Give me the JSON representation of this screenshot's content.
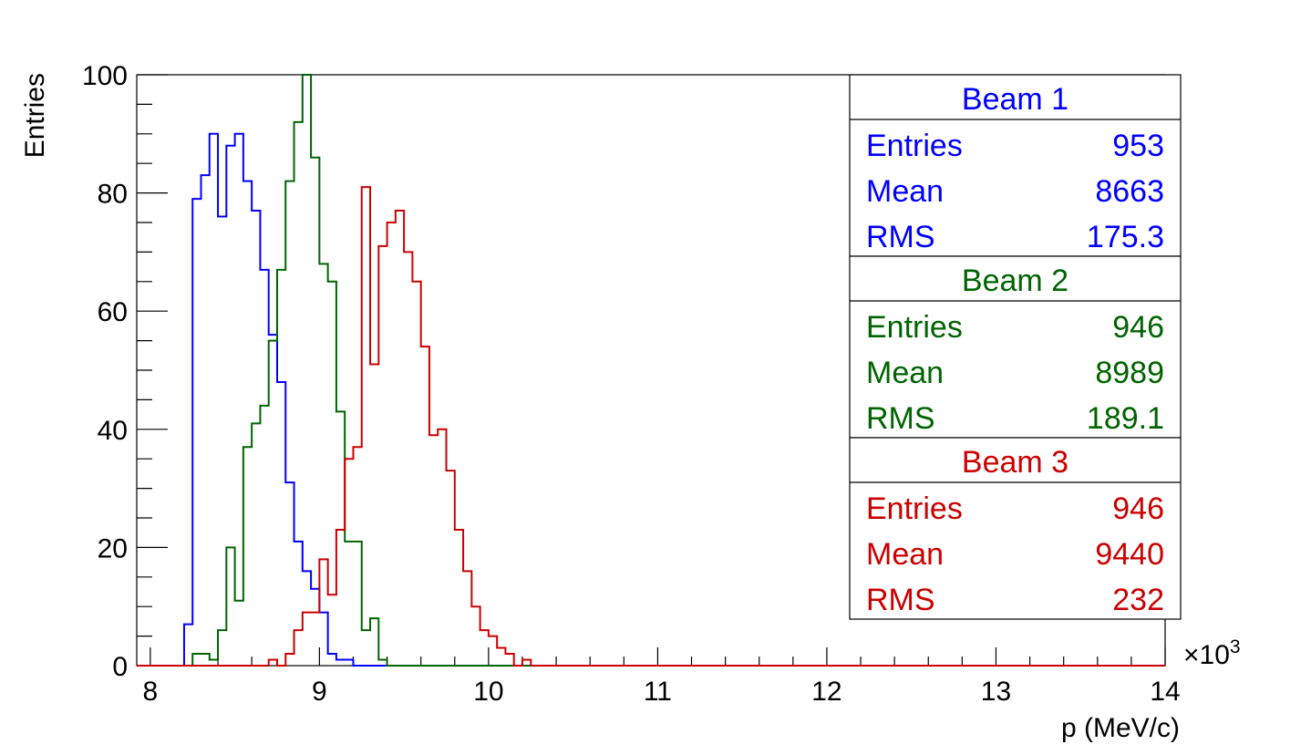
{
  "chart_data": {
    "type": "histogram",
    "xlabel": "p (MeV/c)",
    "ylabel": "Entries",
    "x_multiplier": "×10",
    "x_multiplier_exp": "3",
    "xlim": [
      7.92,
      14.0
    ],
    "ylim": [
      0,
      100
    ],
    "x_ticks": [
      "8",
      "9",
      "10",
      "11",
      "12",
      "13",
      "14"
    ],
    "y_ticks": [
      "0",
      "20",
      "40",
      "60",
      "80",
      "100"
    ],
    "bin_width": 0.05,
    "bin_start": 8.0,
    "grid": false,
    "series": [
      {
        "name": "Beam 1",
        "color": "#0000ff",
        "values": [
          0,
          0,
          0,
          0,
          7,
          79,
          83,
          90,
          76,
          88,
          90,
          82,
          77,
          67,
          56,
          48,
          31,
          21,
          16,
          13,
          9,
          2,
          1,
          1,
          0,
          0,
          0,
          0,
          0,
          0,
          0,
          0,
          0,
          0,
          0,
          0,
          0,
          0,
          0,
          0,
          0,
          0,
          0,
          0,
          0,
          0,
          0,
          0,
          0,
          0,
          0,
          0,
          0,
          0,
          0,
          0,
          0,
          0,
          0,
          0,
          0,
          0,
          0,
          0,
          0,
          0,
          0,
          0,
          0,
          0,
          0,
          0,
          0,
          0,
          0,
          0,
          0,
          0,
          0,
          0,
          0,
          0,
          0,
          0,
          0,
          0,
          0,
          0,
          0,
          0,
          0,
          0,
          0,
          0,
          0,
          0,
          0,
          0,
          0,
          0,
          0,
          0,
          0,
          0,
          0,
          0,
          0,
          0,
          0,
          0,
          0,
          0,
          0,
          0,
          0,
          0,
          0,
          0,
          0,
          0
        ],
        "stats": {
          "Entries": "953",
          "Mean": "8663",
          "RMS": "175.3"
        }
      },
      {
        "name": "Beam 2",
        "color": "#006400",
        "values": [
          0,
          0,
          0,
          0,
          0,
          2,
          2,
          1,
          6,
          20,
          11,
          37,
          41,
          44,
          55,
          67,
          82,
          92,
          100,
          86,
          68,
          65,
          43,
          21,
          21,
          6,
          8,
          1,
          0,
          0,
          0,
          0,
          0,
          0,
          0,
          0,
          0,
          0,
          0,
          0,
          0,
          0,
          0,
          0,
          0,
          0,
          0,
          0,
          0,
          0,
          0,
          0,
          0,
          0,
          0,
          0,
          0,
          0,
          0,
          0,
          0,
          0,
          0,
          0,
          0,
          0,
          0,
          0,
          0,
          0,
          0,
          0,
          0,
          0,
          0,
          0,
          0,
          0,
          0,
          0,
          0,
          0,
          0,
          0,
          0,
          0,
          0,
          0,
          0,
          0,
          0,
          0,
          0,
          0,
          0,
          0,
          0,
          0,
          0,
          0,
          0,
          0,
          0,
          0,
          0,
          0,
          0,
          0,
          0,
          0,
          0,
          0,
          0,
          0,
          0,
          0,
          0,
          0,
          0,
          0
        ],
        "stats": {
          "Entries": "946",
          "Mean": "8989",
          "RMS": "189.1"
        }
      },
      {
        "name": "Beam 3",
        "color": "#cc0000",
        "values": [
          0,
          0,
          0,
          0,
          0,
          0,
          0,
          0,
          0,
          0,
          0,
          0,
          0,
          0,
          1,
          0,
          2,
          6,
          9,
          9,
          18,
          12,
          23,
          35,
          37,
          81,
          51,
          71,
          75,
          77,
          70,
          65,
          54,
          39,
          40,
          33,
          23,
          16,
          10,
          6,
          5,
          3,
          2,
          0,
          1,
          0,
          0,
          0,
          0,
          0,
          0,
          0,
          0,
          0,
          0,
          0,
          0,
          0,
          0,
          0,
          0,
          0,
          0,
          0,
          0,
          0,
          0,
          0,
          0,
          0,
          0,
          0,
          0,
          0,
          0,
          0,
          0,
          0,
          0,
          0,
          0,
          0,
          0,
          0,
          0,
          0,
          0,
          0,
          0,
          0,
          0,
          0,
          0,
          0,
          0,
          0,
          0,
          0,
          0,
          0,
          0,
          0,
          0,
          0,
          0,
          0,
          0,
          0,
          0,
          0,
          0,
          0,
          0,
          0,
          0,
          0,
          0,
          0,
          0,
          0
        ],
        "stats": {
          "Entries": "946",
          "Mean": "9440",
          "RMS": "232"
        }
      }
    ]
  },
  "stat_labels": {
    "entries": "Entries",
    "mean": "Mean",
    "rms": "RMS"
  }
}
